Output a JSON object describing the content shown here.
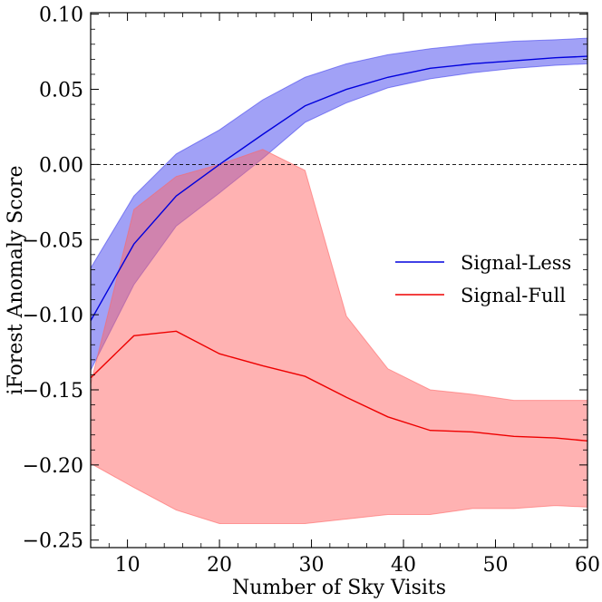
{
  "chart_data": {
    "type": "line",
    "xlabel": "Number of Sky Visits",
    "ylabel": "iForest Anomaly Score",
    "xlim": [
      6,
      60
    ],
    "ylim": [
      -0.255,
      0.101
    ],
    "x_ticks": [
      10,
      20,
      30,
      40,
      50,
      60
    ],
    "x_tick_labels": [
      "10",
      "20",
      "30",
      "40",
      "50",
      "60"
    ],
    "y_ticks": [
      0.1,
      0.05,
      0.0,
      -0.05,
      -0.1,
      -0.15,
      -0.2,
      -0.25
    ],
    "y_tick_labels": [
      "0.10",
      "0.05",
      "0.00",
      "−0.05",
      "−0.10",
      "−0.15",
      "−0.20",
      "−0.25"
    ],
    "reference_line": {
      "y": 0.0,
      "style": "dashed",
      "color": "#000000"
    },
    "legend_position": "center-right",
    "x": [
      6,
      10.7,
      15.3,
      20,
      24.7,
      29.3,
      33.8,
      38.3,
      42.9,
      47.5,
      52,
      56.5,
      60
    ],
    "series": [
      {
        "name": "Signal-Less",
        "color": "#0000dd",
        "fill": "#4444ee",
        "values": [
          -0.104,
          -0.053,
          -0.021,
          0.0,
          0.02,
          0.039,
          0.05,
          0.058,
          0.064,
          0.067,
          0.069,
          0.071,
          0.072
        ],
        "lower": [
          -0.137,
          -0.08,
          -0.041,
          -0.019,
          0.004,
          0.028,
          0.041,
          0.051,
          0.057,
          0.061,
          0.064,
          0.066,
          0.067
        ],
        "upper": [
          -0.069,
          -0.021,
          0.007,
          0.023,
          0.043,
          0.058,
          0.067,
          0.073,
          0.077,
          0.08,
          0.082,
          0.083,
          0.084
        ]
      },
      {
        "name": "Signal-Full",
        "color": "#ee0000",
        "fill": "#ff6666",
        "values": [
          -0.142,
          -0.114,
          -0.111,
          -0.126,
          -0.134,
          -0.141,
          -0.155,
          -0.168,
          -0.177,
          -0.178,
          -0.181,
          -0.182,
          -0.184
        ],
        "lower": [
          -0.199,
          -0.215,
          -0.23,
          -0.239,
          -0.239,
          -0.239,
          -0.236,
          -0.233,
          -0.233,
          -0.229,
          -0.229,
          -0.227,
          -0.228
        ],
        "upper": [
          -0.146,
          -0.03,
          -0.008,
          0.0,
          0.01,
          -0.004,
          -0.101,
          -0.136,
          -0.15,
          -0.153,
          -0.157,
          -0.157,
          -0.157
        ]
      }
    ]
  }
}
